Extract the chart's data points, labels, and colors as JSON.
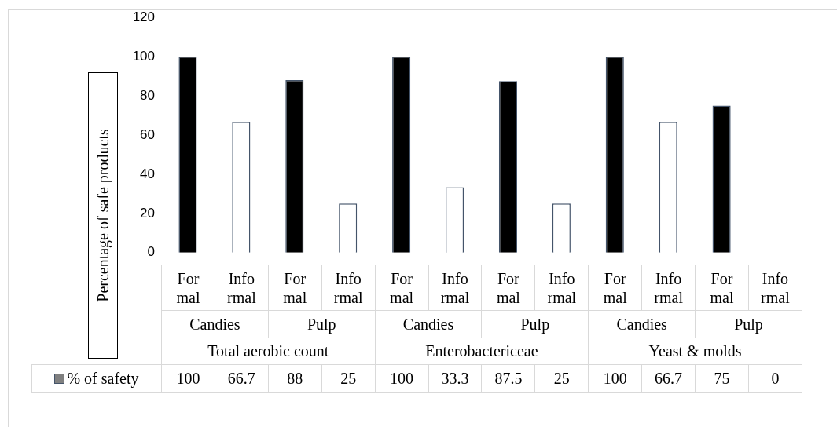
{
  "chart_data": {
    "type": "bar",
    "ylabel": "Percentage of safe products",
    "categories": [
      "Formal",
      "Informal",
      "Formal",
      "Informal",
      "Formal",
      "Informal",
      "Formal",
      "Informal",
      "Formal",
      "Informal",
      "Formal",
      "Informal"
    ],
    "series": [
      {
        "name": "% of safety",
        "color": "#808080",
        "values": [
          100,
          66.7,
          88,
          25,
          100,
          33.3,
          87.5,
          25,
          100,
          66.7,
          75,
          0
        ],
        "colors": [
          "#000000",
          "#ffffff",
          "#000000",
          "#ffffff",
          "#000000",
          "#ffffff",
          "#000000",
          "#ffffff",
          "#000000",
          "#ffffff",
          "#000000",
          "#ffffff"
        ]
      }
    ],
    "annotations": [
      "Candies",
      "Pulp",
      "Candies",
      "Pulp",
      "Candies",
      "Pulp",
      "Total aerobic count",
      "Enterobactericeae",
      "Yeast & molds"
    ],
    "ylim": [
      0,
      120
    ],
    "yticks": [
      0,
      20,
      40,
      60,
      80,
      100,
      120
    ],
    "grid": false,
    "legend": "bottom",
    "data_labels": true
  }
}
